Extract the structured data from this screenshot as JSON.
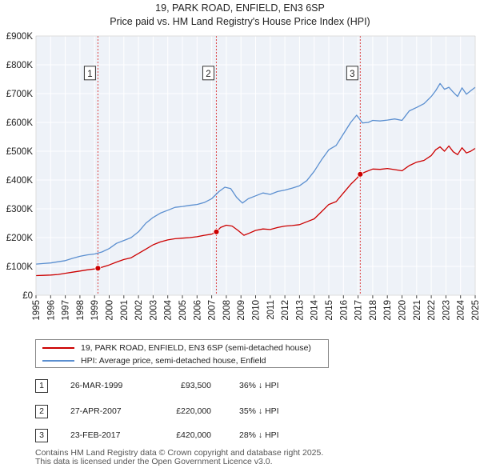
{
  "header": {
    "title_line1": "19, PARK ROAD, ENFIELD, EN3 6SP",
    "title_line2": "Price paid vs. HM Land Registry's House Price Index (HPI)"
  },
  "legend": {
    "red_label": "19, PARK ROAD, ENFIELD, EN3 6SP (semi-detached house)",
    "blue_label": "HPI: Average price, semi-detached house, Enfield",
    "red_color": "#cc0000",
    "blue_color": "#5b8fd0"
  },
  "transactions": [
    {
      "num": "1",
      "date": "26-MAR-1999",
      "price": "£93,500",
      "hpi": "36% ↓ HPI"
    },
    {
      "num": "2",
      "date": "27-APR-2007",
      "price": "£220,000",
      "hpi": "35% ↓ HPI"
    },
    {
      "num": "3",
      "date": "23-FEB-2017",
      "price": "£420,000",
      "hpi": "28% ↓ HPI"
    }
  ],
  "footer": {
    "line1": "Contains HM Land Registry data © Crown copyright and database right 2025.",
    "line2": "This data is licensed under the Open Government Licence v3.0."
  },
  "chart_data": {
    "type": "line",
    "ylim": [
      0,
      900000
    ],
    "xlim": [
      1995,
      2025
    ],
    "y_ticks": [
      0,
      100000,
      200000,
      300000,
      400000,
      500000,
      600000,
      700000,
      800000,
      900000
    ],
    "y_tick_labels": [
      "£0",
      "£100K",
      "£200K",
      "£300K",
      "£400K",
      "£500K",
      "£600K",
      "£700K",
      "£800K",
      "£900K"
    ],
    "x_ticks": [
      1995,
      1996,
      1997,
      1998,
      1999,
      2000,
      2001,
      2002,
      2003,
      2004,
      2005,
      2006,
      2007,
      2008,
      2009,
      2010,
      2011,
      2012,
      2013,
      2014,
      2015,
      2016,
      2017,
      2018,
      2019,
      2020,
      2021,
      2022,
      2023,
      2024,
      2025
    ],
    "x_tick_labels": [
      "1995",
      "1996",
      "1997",
      "1998",
      "1999",
      "2000",
      "2001",
      "2002",
      "2003",
      "2004",
      "2005",
      "2006",
      "2007",
      "2008",
      "2009",
      "2010",
      "2011",
      "2012",
      "2013",
      "2014",
      "2015",
      "2016",
      "2017",
      "2018",
      "2019",
      "2020",
      "2021",
      "2022",
      "2023",
      "2024",
      "2025"
    ],
    "grid": true,
    "sales": [
      {
        "label": "1",
        "x": 1999.23,
        "y": 93500
      },
      {
        "label": "2",
        "x": 2007.32,
        "y": 220000
      },
      {
        "label": "3",
        "x": 2017.15,
        "y": 420000
      }
    ],
    "marker_label_value": 770000,
    "series": [
      {
        "name": "HPI: Average price, semi-detached house, Enfield",
        "color": "#5b8fd0",
        "x": [
          1995.0,
          1995.5,
          1996.0,
          1996.5,
          1997.0,
          1997.5,
          1998.0,
          1998.5,
          1999.0,
          1999.5,
          2000.0,
          2000.5,
          2001.0,
          2001.5,
          2002.0,
          2002.5,
          2003.0,
          2003.5,
          2004.0,
          2004.5,
          2005.0,
          2005.5,
          2006.0,
          2006.5,
          2007.0,
          2007.5,
          2007.9,
          2008.3,
          2008.7,
          2009.1,
          2009.5,
          2010.0,
          2010.5,
          2011.0,
          2011.5,
          2012.0,
          2012.5,
          2013.0,
          2013.5,
          2014.0,
          2014.5,
          2015.0,
          2015.5,
          2016.0,
          2016.5,
          2016.9,
          2017.3,
          2017.7,
          2018.0,
          2018.5,
          2019.0,
          2019.5,
          2020.0,
          2020.5,
          2021.0,
          2021.5,
          2022.0,
          2022.3,
          2022.6,
          2022.9,
          2023.2,
          2023.5,
          2023.8,
          2024.1,
          2024.4,
          2024.7,
          2025.0
        ],
        "values": [
          108000,
          110000,
          112000,
          116000,
          120000,
          128000,
          135000,
          140000,
          143000,
          150000,
          162000,
          180000,
          190000,
          200000,
          220000,
          250000,
          270000,
          285000,
          295000,
          305000,
          308000,
          312000,
          315000,
          322000,
          335000,
          360000,
          375000,
          370000,
          340000,
          320000,
          335000,
          345000,
          355000,
          350000,
          360000,
          365000,
          372000,
          380000,
          398000,
          430000,
          470000,
          505000,
          520000,
          560000,
          600000,
          625000,
          598000,
          600000,
          607000,
          605000,
          608000,
          612000,
          607000,
          640000,
          652000,
          665000,
          690000,
          710000,
          735000,
          715000,
          722000,
          705000,
          690000,
          720000,
          698000,
          710000,
          722000
        ]
      },
      {
        "name": "19, PARK ROAD, ENFIELD, EN3 6SP (semi-detached house)",
        "color": "#cc0000",
        "x": [
          1995.0,
          1995.5,
          1996.0,
          1996.5,
          1997.0,
          1997.5,
          1998.0,
          1998.5,
          1999.0,
          1999.23,
          1999.5,
          2000.0,
          2000.5,
          2001.0,
          2001.5,
          2002.0,
          2002.5,
          2003.0,
          2003.5,
          2004.0,
          2004.5,
          2005.0,
          2005.5,
          2006.0,
          2006.5,
          2007.0,
          2007.32,
          2007.6,
          2008.0,
          2008.4,
          2008.8,
          2009.2,
          2009.6,
          2010.0,
          2010.5,
          2011.0,
          2011.5,
          2012.0,
          2012.5,
          2013.0,
          2013.5,
          2014.0,
          2014.5,
          2015.0,
          2015.5,
          2016.0,
          2016.5,
          2016.9,
          2017.15,
          2017.5,
          2018.0,
          2018.5,
          2019.0,
          2019.5,
          2020.0,
          2020.5,
          2021.0,
          2021.5,
          2022.0,
          2022.3,
          2022.6,
          2022.9,
          2023.2,
          2023.5,
          2023.8,
          2024.1,
          2024.4,
          2024.7,
          2025.0
        ],
        "values": [
          68000,
          69000,
          70000,
          72000,
          76000,
          80000,
          84000,
          88000,
          91000,
          93500,
          97000,
          105000,
          115000,
          124000,
          130000,
          145000,
          160000,
          175000,
          185000,
          192000,
          196000,
          198000,
          200000,
          203000,
          208000,
          212000,
          220000,
          235000,
          243000,
          240000,
          225000,
          208000,
          216000,
          225000,
          230000,
          228000,
          235000,
          240000,
          242000,
          245000,
          255000,
          265000,
          290000,
          315000,
          325000,
          355000,
          385000,
          405000,
          420000,
          428000,
          438000,
          437000,
          440000,
          436000,
          432000,
          450000,
          462000,
          468000,
          485000,
          505000,
          515000,
          500000,
          518000,
          498000,
          488000,
          512000,
          494000,
          500000,
          510000
        ]
      }
    ]
  }
}
